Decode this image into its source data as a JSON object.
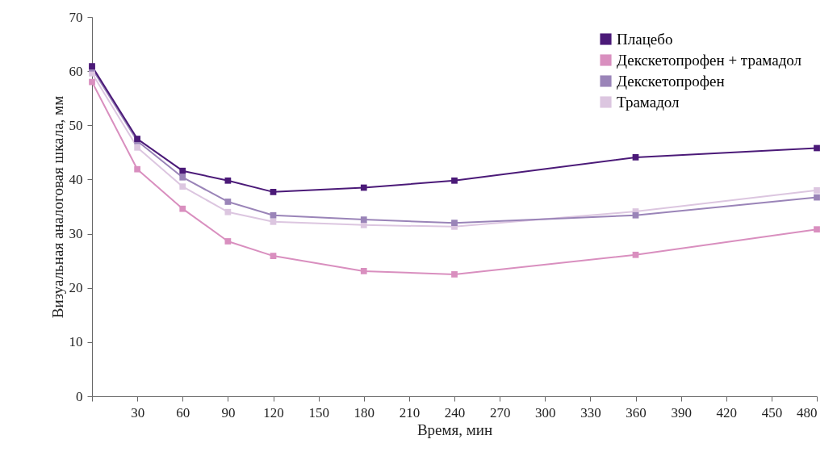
{
  "chart_data": {
    "type": "line",
    "xlabel": "Время, мин",
    "ylabel": "Визуальная аналоговая шкала, мм",
    "x": [
      0,
      30,
      60,
      90,
      120,
      180,
      240,
      360,
      480
    ],
    "xlim": [
      0,
      480
    ],
    "xticks": [
      {
        "value": 0,
        "label": null
      },
      30,
      60,
      90,
      120,
      150,
      180,
      210,
      240,
      270,
      300,
      330,
      360,
      390,
      420,
      450,
      480
    ],
    "ylim": [
      0,
      70
    ],
    "yticks": [
      0,
      10,
      20,
      30,
      40,
      50,
      60,
      70
    ],
    "grid": false,
    "legend": "top right",
    "marker": "square",
    "line_style": "solid",
    "series": [
      {
        "name": "Плацебо",
        "color": "#4b1a78",
        "values": [
          60.9,
          47.5,
          41.6,
          39.8,
          37.7,
          38.5,
          39.8,
          44.1,
          45.8
        ]
      },
      {
        "name": "Декскетопрофен + трамадол",
        "color": "#d98fbf",
        "values": [
          58.0,
          41.9,
          34.6,
          28.6,
          25.9,
          23.1,
          22.5,
          26.1,
          30.8
        ]
      },
      {
        "name": "Декскетопрофен",
        "color": "#9a84b8",
        "values": [
          60.5,
          47.1,
          40.4,
          35.9,
          33.4,
          32.6,
          32.0,
          33.4,
          36.7
        ]
      },
      {
        "name": "Трамадол",
        "color": "#dcc6e0",
        "values": [
          59.6,
          45.9,
          38.7,
          34.0,
          32.2,
          31.6,
          31.3,
          34.1,
          38.0
        ]
      }
    ]
  }
}
